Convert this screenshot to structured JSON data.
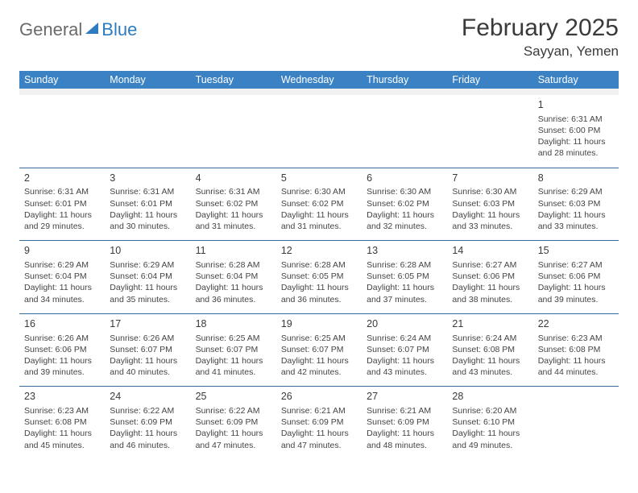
{
  "logo": {
    "text1": "General",
    "text2": "Blue"
  },
  "title": "February 2025",
  "location": "Sayyan, Yemen",
  "colors": {
    "header_bg": "#3b82c4",
    "header_text": "#ffffff",
    "row_divider": "#3a6a9a",
    "spacer_bg": "#f1f1f1",
    "logo_gray": "#6a6a6a",
    "logo_blue": "#2f7bbf",
    "body_text": "#3a3a3a"
  },
  "day_names": [
    "Sunday",
    "Monday",
    "Tuesday",
    "Wednesday",
    "Thursday",
    "Friday",
    "Saturday"
  ],
  "weeks": [
    [
      null,
      null,
      null,
      null,
      null,
      null,
      {
        "n": "1",
        "sr": "Sunrise: 6:31 AM",
        "ss": "Sunset: 6:00 PM",
        "d1": "Daylight: 11 hours",
        "d2": "and 28 minutes."
      }
    ],
    [
      {
        "n": "2",
        "sr": "Sunrise: 6:31 AM",
        "ss": "Sunset: 6:01 PM",
        "d1": "Daylight: 11 hours",
        "d2": "and 29 minutes."
      },
      {
        "n": "3",
        "sr": "Sunrise: 6:31 AM",
        "ss": "Sunset: 6:01 PM",
        "d1": "Daylight: 11 hours",
        "d2": "and 30 minutes."
      },
      {
        "n": "4",
        "sr": "Sunrise: 6:31 AM",
        "ss": "Sunset: 6:02 PM",
        "d1": "Daylight: 11 hours",
        "d2": "and 31 minutes."
      },
      {
        "n": "5",
        "sr": "Sunrise: 6:30 AM",
        "ss": "Sunset: 6:02 PM",
        "d1": "Daylight: 11 hours",
        "d2": "and 31 minutes."
      },
      {
        "n": "6",
        "sr": "Sunrise: 6:30 AM",
        "ss": "Sunset: 6:02 PM",
        "d1": "Daylight: 11 hours",
        "d2": "and 32 minutes."
      },
      {
        "n": "7",
        "sr": "Sunrise: 6:30 AM",
        "ss": "Sunset: 6:03 PM",
        "d1": "Daylight: 11 hours",
        "d2": "and 33 minutes."
      },
      {
        "n": "8",
        "sr": "Sunrise: 6:29 AM",
        "ss": "Sunset: 6:03 PM",
        "d1": "Daylight: 11 hours",
        "d2": "and 33 minutes."
      }
    ],
    [
      {
        "n": "9",
        "sr": "Sunrise: 6:29 AM",
        "ss": "Sunset: 6:04 PM",
        "d1": "Daylight: 11 hours",
        "d2": "and 34 minutes."
      },
      {
        "n": "10",
        "sr": "Sunrise: 6:29 AM",
        "ss": "Sunset: 6:04 PM",
        "d1": "Daylight: 11 hours",
        "d2": "and 35 minutes."
      },
      {
        "n": "11",
        "sr": "Sunrise: 6:28 AM",
        "ss": "Sunset: 6:04 PM",
        "d1": "Daylight: 11 hours",
        "d2": "and 36 minutes."
      },
      {
        "n": "12",
        "sr": "Sunrise: 6:28 AM",
        "ss": "Sunset: 6:05 PM",
        "d1": "Daylight: 11 hours",
        "d2": "and 36 minutes."
      },
      {
        "n": "13",
        "sr": "Sunrise: 6:28 AM",
        "ss": "Sunset: 6:05 PM",
        "d1": "Daylight: 11 hours",
        "d2": "and 37 minutes."
      },
      {
        "n": "14",
        "sr": "Sunrise: 6:27 AM",
        "ss": "Sunset: 6:06 PM",
        "d1": "Daylight: 11 hours",
        "d2": "and 38 minutes."
      },
      {
        "n": "15",
        "sr": "Sunrise: 6:27 AM",
        "ss": "Sunset: 6:06 PM",
        "d1": "Daylight: 11 hours",
        "d2": "and 39 minutes."
      }
    ],
    [
      {
        "n": "16",
        "sr": "Sunrise: 6:26 AM",
        "ss": "Sunset: 6:06 PM",
        "d1": "Daylight: 11 hours",
        "d2": "and 39 minutes."
      },
      {
        "n": "17",
        "sr": "Sunrise: 6:26 AM",
        "ss": "Sunset: 6:07 PM",
        "d1": "Daylight: 11 hours",
        "d2": "and 40 minutes."
      },
      {
        "n": "18",
        "sr": "Sunrise: 6:25 AM",
        "ss": "Sunset: 6:07 PM",
        "d1": "Daylight: 11 hours",
        "d2": "and 41 minutes."
      },
      {
        "n": "19",
        "sr": "Sunrise: 6:25 AM",
        "ss": "Sunset: 6:07 PM",
        "d1": "Daylight: 11 hours",
        "d2": "and 42 minutes."
      },
      {
        "n": "20",
        "sr": "Sunrise: 6:24 AM",
        "ss": "Sunset: 6:07 PM",
        "d1": "Daylight: 11 hours",
        "d2": "and 43 minutes."
      },
      {
        "n": "21",
        "sr": "Sunrise: 6:24 AM",
        "ss": "Sunset: 6:08 PM",
        "d1": "Daylight: 11 hours",
        "d2": "and 43 minutes."
      },
      {
        "n": "22",
        "sr": "Sunrise: 6:23 AM",
        "ss": "Sunset: 6:08 PM",
        "d1": "Daylight: 11 hours",
        "d2": "and 44 minutes."
      }
    ],
    [
      {
        "n": "23",
        "sr": "Sunrise: 6:23 AM",
        "ss": "Sunset: 6:08 PM",
        "d1": "Daylight: 11 hours",
        "d2": "and 45 minutes."
      },
      {
        "n": "24",
        "sr": "Sunrise: 6:22 AM",
        "ss": "Sunset: 6:09 PM",
        "d1": "Daylight: 11 hours",
        "d2": "and 46 minutes."
      },
      {
        "n": "25",
        "sr": "Sunrise: 6:22 AM",
        "ss": "Sunset: 6:09 PM",
        "d1": "Daylight: 11 hours",
        "d2": "and 47 minutes."
      },
      {
        "n": "26",
        "sr": "Sunrise: 6:21 AM",
        "ss": "Sunset: 6:09 PM",
        "d1": "Daylight: 11 hours",
        "d2": "and 47 minutes."
      },
      {
        "n": "27",
        "sr": "Sunrise: 6:21 AM",
        "ss": "Sunset: 6:09 PM",
        "d1": "Daylight: 11 hours",
        "d2": "and 48 minutes."
      },
      {
        "n": "28",
        "sr": "Sunrise: 6:20 AM",
        "ss": "Sunset: 6:10 PM",
        "d1": "Daylight: 11 hours",
        "d2": "and 49 minutes."
      },
      null
    ]
  ]
}
